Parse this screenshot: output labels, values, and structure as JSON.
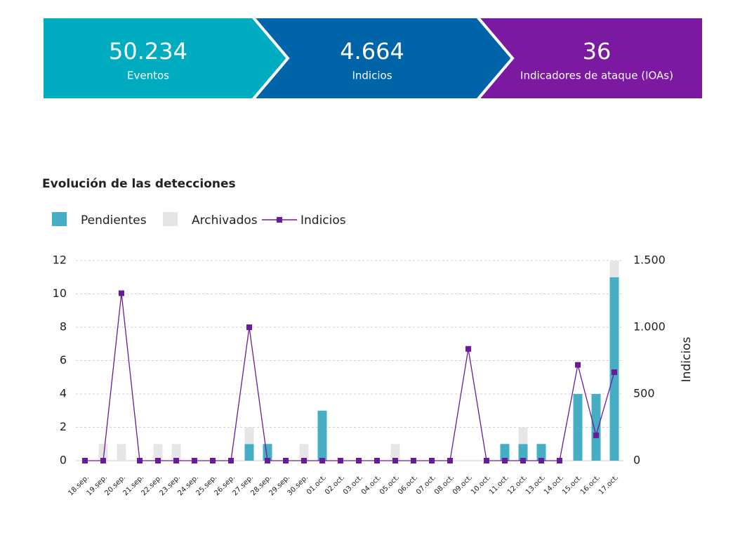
{
  "banners": [
    {
      "value": "50.234",
      "label": "Eventos",
      "color": "#00adc0"
    },
    {
      "value": "4.664",
      "label": "Indicios",
      "color": "#0065a8"
    },
    {
      "value": "36",
      "label": "Indicadores de ataque (IOAs)",
      "color": "#7b1aa0"
    }
  ],
  "chart_data": {
    "type": "bar",
    "title": "Evolución de las detecciones",
    "categories": [
      "18.sep.",
      "19.sep.",
      "20.sep.",
      "21.sep.",
      "22.sep.",
      "23.sep.",
      "24.sep.",
      "25.sep.",
      "26.sep.",
      "27.sep.",
      "28.sep.",
      "29.sep.",
      "30.sep.",
      "01.oct.",
      "02.oct.",
      "03.oct.",
      "04.oct.",
      "05.oct.",
      "06.oct.",
      "07.oct.",
      "08.oct.",
      "09.oct.",
      "10.oct.",
      "11.oct.",
      "12.oct.",
      "13.oct.",
      "14.oct.",
      "15.oct.",
      "16.oct.",
      "17.oct."
    ],
    "series": [
      {
        "name": "Pendientes",
        "type": "bar",
        "color": "#45adc4",
        "values": [
          0,
          0,
          0,
          0,
          0,
          0,
          0,
          0,
          0,
          1,
          1,
          0,
          0,
          3,
          0,
          0,
          0,
          0,
          0,
          0,
          0,
          0,
          0,
          1,
          1,
          1,
          0,
          4,
          4,
          11
        ]
      },
      {
        "name": "Archivados",
        "type": "bar",
        "color": "#e6e6e6",
        "values": [
          0,
          1,
          1,
          0,
          1,
          1,
          0,
          0,
          0,
          1,
          0,
          0,
          1,
          0,
          0,
          0,
          0,
          1,
          0,
          0,
          0,
          0,
          0,
          0,
          1,
          0,
          0,
          0,
          0,
          1
        ]
      },
      {
        "name": "Indicios",
        "type": "line",
        "axis": "y2",
        "color": "#6a1b9a",
        "values": [
          0,
          0,
          1255,
          0,
          0,
          0,
          0,
          0,
          0,
          1000,
          0,
          0,
          0,
          0,
          0,
          0,
          0,
          0,
          0,
          0,
          0,
          838,
          0,
          0,
          0,
          0,
          0,
          718,
          190,
          663
        ]
      }
    ],
    "ylim": [
      0,
      12
    ],
    "yticks": [
      0,
      2,
      4,
      6,
      8,
      10,
      12
    ],
    "y2lim": [
      0,
      1500
    ],
    "y2ticks": [
      0,
      500,
      {
        "value": 1000,
        "label": "1.000"
      },
      {
        "value": 1500,
        "label": "1.500"
      }
    ],
    "y2label": "Indicios",
    "grid": true,
    "legend": "top"
  }
}
